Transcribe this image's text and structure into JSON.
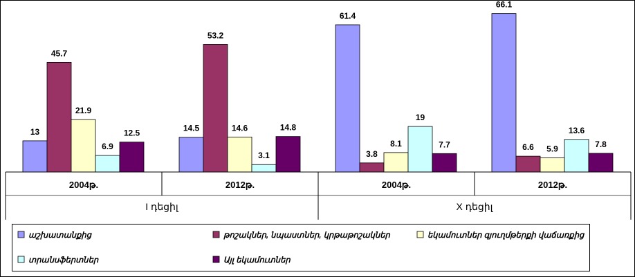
{
  "chart_data": {
    "type": "bar",
    "categories": [
      "2004թ.",
      "2012թ.",
      "2004թ.",
      "2012թ."
    ],
    "groups": [
      {
        "label": "I դեցիլ",
        "categories": [
          "2004թ.",
          "2012թ."
        ]
      },
      {
        "label": "X դեցիլ",
        "categories": [
          "2004թ.",
          "2012թ."
        ]
      }
    ],
    "series": [
      {
        "name": "աշխատանքից",
        "color": "#9999ff",
        "values": [
          13,
          14.5,
          61.4,
          66.1
        ]
      },
      {
        "name": "թոշակներ, նպաստներ, կրթաթոշակներ",
        "color": "#993366",
        "values": [
          45.7,
          53.2,
          3.8,
          6.6
        ]
      },
      {
        "name": "եկամուտներ գյուղմթերքի վաճառքից",
        "color": "#ffffcc",
        "values": [
          21.9,
          14.6,
          8.1,
          5.9
        ]
      },
      {
        "name": "տրանսֆերտներ",
        "color": "#ccffff",
        "values": [
          6.9,
          3.1,
          19,
          13.6
        ]
      },
      {
        "name": "Այլ եկամուտներ",
        "color": "#660066",
        "values": [
          12.5,
          14.8,
          7.7,
          7.8
        ]
      }
    ],
    "value_labels": [
      [
        "13",
        "14.5",
        "61.4",
        "66.1"
      ],
      [
        "45.7",
        "53.2",
        "3.8",
        "6.6"
      ],
      [
        "21.9",
        "14.6",
        "8.1",
        "5.9"
      ],
      [
        "6.9",
        "3.1",
        "19",
        "13.6"
      ],
      [
        "12.5",
        "14.8",
        "7.7",
        "7.8"
      ]
    ],
    "ylim": [
      0,
      70
    ],
    "grid": false,
    "legend_position": "bottom"
  }
}
